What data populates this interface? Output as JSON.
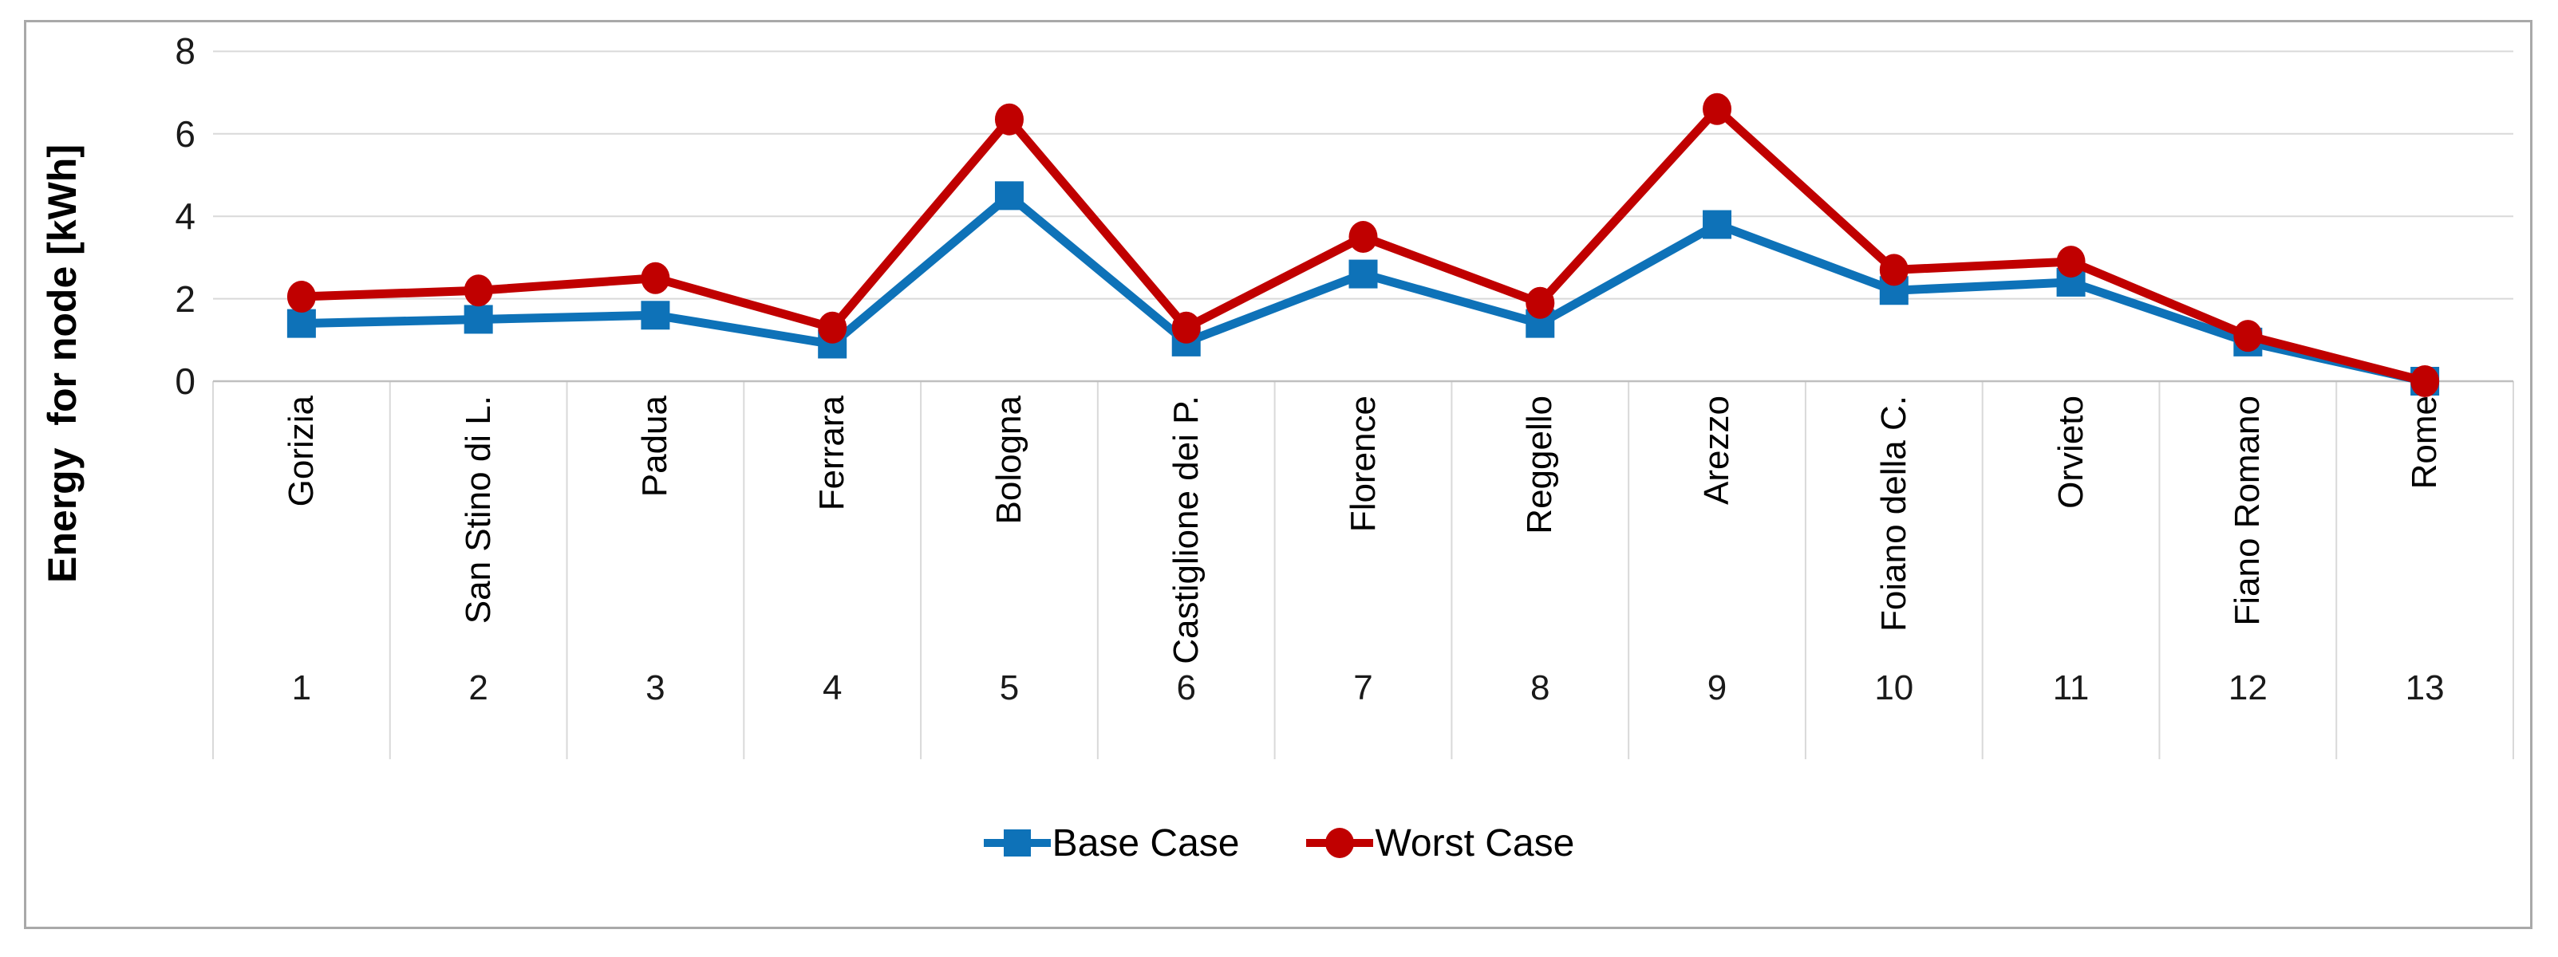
{
  "chart_data": {
    "type": "line",
    "title": "",
    "ylabel": "Energy  for node [kWh]",
    "xlabel": "",
    "ylim": [
      0,
      8
    ],
    "yticks": [
      0,
      2,
      4,
      6,
      8
    ],
    "grid": "horizontal",
    "legend_position": "bottom-center",
    "categories": [
      "Gorizia",
      "San Stino di L.",
      "Padua",
      "Ferrara",
      "Bologna",
      "Castiglione dei P.",
      "Florence",
      "Reggello",
      "Arezzo",
      "Foiano della C.",
      "Orvieto",
      "Fiano Romano",
      "Rome"
    ],
    "category_numbers": [
      1,
      2,
      3,
      4,
      5,
      6,
      7,
      8,
      9,
      10,
      11,
      12,
      13
    ],
    "series": [
      {
        "name": "Base Case",
        "marker": "square",
        "color": "#0e72b8",
        "values": [
          1.4,
          1.5,
          1.6,
          0.9,
          4.5,
          0.95,
          2.6,
          1.4,
          3.8,
          2.2,
          2.4,
          0.95,
          0
        ]
      },
      {
        "name": "Worst Case",
        "marker": "circle",
        "color": "#c00000",
        "values": [
          2.05,
          2.2,
          2.5,
          1.3,
          6.35,
          1.3,
          3.5,
          1.9,
          6.6,
          2.7,
          2.9,
          1.1,
          0
        ]
      }
    ],
    "colors": {
      "gridline": "#d9d9d9",
      "axis_line": "#bfbfbf",
      "chart_border": "#a9a9a9"
    }
  }
}
